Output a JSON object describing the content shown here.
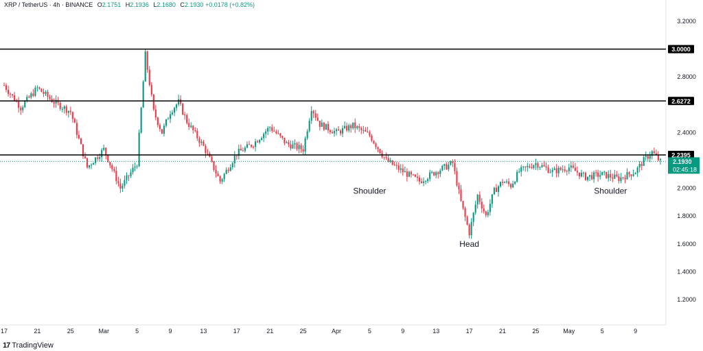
{
  "header": {
    "symbol": "XRP / TetherUS · 4h · BINANCE",
    "o_label": "O",
    "o_value": "2.1751",
    "h_label": "H",
    "h_value": "2.1936",
    "l_label": "L",
    "l_value": "2.1680",
    "c_label": "C",
    "c_value": "2.1930",
    "change": "+0.0178 (+0.82%)"
  },
  "brand": {
    "logo": "17",
    "name": "TradingView"
  },
  "colors": {
    "up": "#089981",
    "down": "#f23645",
    "price_tag": "#089981",
    "level_tag": "#000000"
  },
  "chart_data": {
    "type": "candlestick",
    "title": "",
    "ylim": [
      1.0,
      3.3
    ],
    "y_ticks": [
      "3.2000",
      "2.8000",
      "2.4000",
      "2.0000",
      "1.8000",
      "1.6000",
      "1.4000",
      "1.2000"
    ],
    "x_ticks": [
      "17",
      "21",
      "25",
      "Mar",
      "5",
      "9",
      "13",
      "17",
      "21",
      "25",
      "Apr",
      "5",
      "9",
      "13",
      "17",
      "21",
      "25",
      "May",
      "5",
      "9"
    ],
    "levels": [
      {
        "value": 3.0,
        "label": "3.0000"
      },
      {
        "value": 2.6272,
        "label": "2.6272"
      },
      {
        "value": 2.2395,
        "label": "2.2395"
      }
    ],
    "current_price": {
      "value": 2.193,
      "label": "2.1930",
      "countdown": "02:45:18"
    },
    "annotations": [
      {
        "text": "Shoulder",
        "x_day": 44,
        "y": 1.96
      },
      {
        "text": "Head",
        "x_day": 56,
        "y": 1.58
      },
      {
        "text": "Shoulder",
        "x_day": 73,
        "y": 1.96
      }
    ],
    "path": [
      [
        0,
        2.74
      ],
      [
        2,
        2.58
      ],
      [
        4,
        2.72
      ],
      [
        6,
        2.62
      ],
      [
        8,
        2.55
      ],
      [
        10,
        2.15
      ],
      [
        12,
        2.28
      ],
      [
        14,
        2.0
      ],
      [
        16,
        2.18
      ],
      [
        17,
        2.96
      ],
      [
        18,
        2.55
      ],
      [
        19,
        2.4
      ],
      [
        20,
        2.55
      ],
      [
        21,
        2.62
      ],
      [
        22,
        2.48
      ],
      [
        24,
        2.3
      ],
      [
        26,
        2.05
      ],
      [
        28,
        2.25
      ],
      [
        30,
        2.32
      ],
      [
        32,
        2.44
      ],
      [
        34,
        2.32
      ],
      [
        36,
        2.28
      ],
      [
        37,
        2.58
      ],
      [
        38,
        2.46
      ],
      [
        40,
        2.4
      ],
      [
        42,
        2.45
      ],
      [
        44,
        2.38
      ],
      [
        46,
        2.2
      ],
      [
        48,
        2.12
      ],
      [
        50,
        2.05
      ],
      [
        52,
        2.12
      ],
      [
        54,
        2.18
      ],
      [
        55,
        1.9
      ],
      [
        56,
        1.68
      ],
      [
        57,
        1.95
      ],
      [
        58,
        1.8
      ],
      [
        59,
        1.98
      ],
      [
        60,
        2.05
      ],
      [
        61,
        2.02
      ],
      [
        62,
        2.12
      ],
      [
        64,
        2.18
      ],
      [
        66,
        2.12
      ],
      [
        68,
        2.15
      ],
      [
        70,
        2.08
      ],
      [
        72,
        2.1
      ],
      [
        74,
        2.07
      ],
      [
        76,
        2.12
      ],
      [
        77,
        2.2
      ],
      [
        78,
        2.26
      ],
      [
        79,
        2.19
      ]
    ]
  }
}
